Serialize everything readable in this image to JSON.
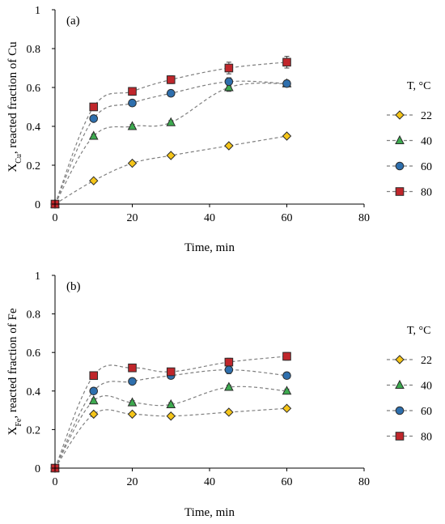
{
  "chart_data": [
    {
      "type": "scatter",
      "panel_label": "(a)",
      "xlabel": "Time, min",
      "ylabel_main": "X",
      "ylabel_sub": "Cu",
      "ylabel_rest": ", reacted fraction of Cu",
      "xlim": [
        0,
        80
      ],
      "ylim": [
        0,
        1
      ],
      "xticks": [
        "0",
        "20",
        "40",
        "60",
        "80"
      ],
      "yticks": [
        "0",
        "0.2",
        "0.4",
        "0.6",
        "0.8",
        "1"
      ],
      "legend_title": "T, °C",
      "legend_position": "right",
      "grid": false,
      "series": [
        {
          "name": "22",
          "marker": "diamond",
          "color": "#f5c518",
          "x": [
            0,
            10,
            20,
            30,
            45,
            60
          ],
          "y": [
            0,
            0.12,
            0.21,
            0.25,
            0.3,
            0.35
          ],
          "err": [
            0,
            0,
            0.01,
            0.01,
            0.01,
            0.01
          ]
        },
        {
          "name": "40",
          "marker": "triangle",
          "color": "#3daa4f",
          "x": [
            0,
            10,
            20,
            30,
            45,
            60
          ],
          "y": [
            0,
            0.35,
            0.4,
            0.42,
            0.6,
            0.62
          ],
          "err": [
            0,
            0.01,
            0.01,
            0.01,
            0.02,
            0.01
          ]
        },
        {
          "name": "60",
          "marker": "circle",
          "color": "#2e6fad",
          "x": [
            0,
            10,
            20,
            30,
            45,
            60
          ],
          "y": [
            0,
            0.44,
            0.52,
            0.57,
            0.63,
            0.62
          ],
          "err": [
            0,
            0.01,
            0.01,
            0.01,
            0.02,
            0.01
          ]
        },
        {
          "name": "80",
          "marker": "square",
          "color": "#c0262b",
          "x": [
            0,
            10,
            20,
            30,
            45,
            60
          ],
          "y": [
            0,
            0.5,
            0.58,
            0.64,
            0.7,
            0.73
          ],
          "err": [
            0,
            0.01,
            0.02,
            0.02,
            0.03,
            0.03
          ]
        }
      ]
    },
    {
      "type": "scatter",
      "panel_label": "(b)",
      "xlabel": "Time, min",
      "ylabel_main": "X",
      "ylabel_sub": "Fe",
      "ylabel_rest": ", reacted fraction of Fe",
      "xlim": [
        0,
        80
      ],
      "ylim": [
        0,
        1
      ],
      "xticks": [
        "0",
        "20",
        "40",
        "60",
        "80"
      ],
      "yticks": [
        "0",
        "0.2",
        "0.4",
        "0.6",
        "0.8",
        "1"
      ],
      "legend_title": "T, °C",
      "legend_position": "right",
      "grid": false,
      "series": [
        {
          "name": "22",
          "marker": "diamond",
          "color": "#f5c518",
          "x": [
            0,
            10,
            20,
            30,
            45,
            60
          ],
          "y": [
            0,
            0.28,
            0.28,
            0.27,
            0.29,
            0.31
          ],
          "err": [
            0,
            0.01,
            0.01,
            0.01,
            0.01,
            0.01
          ]
        },
        {
          "name": "40",
          "marker": "triangle",
          "color": "#3daa4f",
          "x": [
            0,
            10,
            20,
            30,
            45,
            60
          ],
          "y": [
            0,
            0.35,
            0.34,
            0.33,
            0.42,
            0.4
          ],
          "err": [
            0,
            0.01,
            0.01,
            0.01,
            0.01,
            0.01
          ]
        },
        {
          "name": "60",
          "marker": "circle",
          "color": "#2e6fad",
          "x": [
            0,
            10,
            20,
            30,
            45,
            60
          ],
          "y": [
            0,
            0.4,
            0.45,
            0.48,
            0.51,
            0.48
          ],
          "err": [
            0,
            0.01,
            0.01,
            0.01,
            0.02,
            0.01
          ]
        },
        {
          "name": "80",
          "marker": "square",
          "color": "#c0262b",
          "x": [
            0,
            10,
            20,
            30,
            45,
            60
          ],
          "y": [
            0,
            0.48,
            0.52,
            0.5,
            0.55,
            0.58
          ],
          "err": [
            0,
            0.01,
            0.02,
            0.01,
            0.02,
            0.02
          ]
        }
      ]
    }
  ]
}
